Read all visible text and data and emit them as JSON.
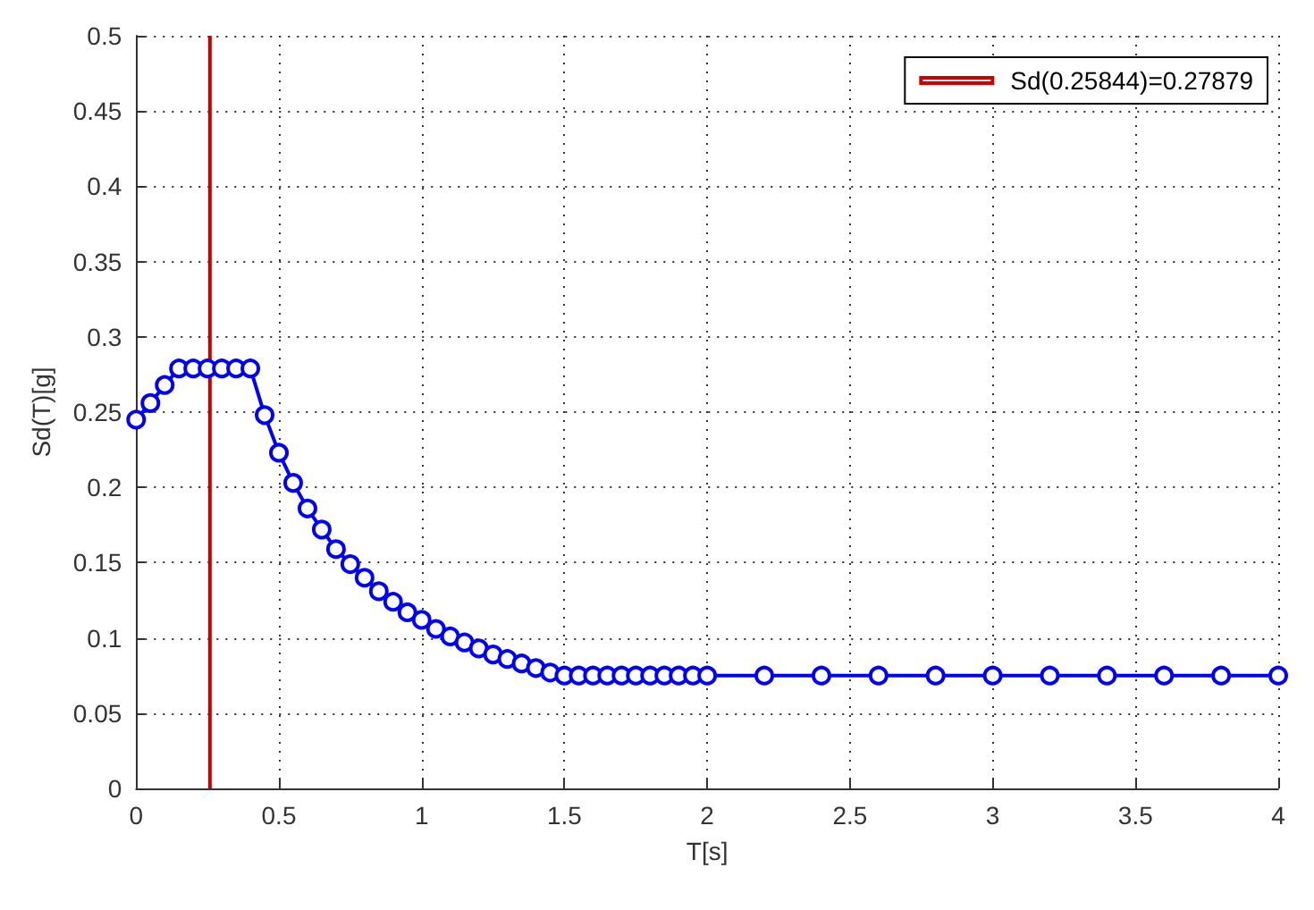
{
  "chart_data": {
    "type": "line",
    "xlabel": "T[s]",
    "ylabel": "Sd(T)[g]",
    "xlim": [
      0,
      4
    ],
    "ylim": [
      0,
      0.5
    ],
    "xticks": [
      0,
      0.5,
      1,
      1.5,
      2,
      2.5,
      3,
      3.5,
      4
    ],
    "yticks": [
      0,
      0.05,
      0.1,
      0.15,
      0.2,
      0.25,
      0.3,
      0.35,
      0.4,
      0.45,
      0.5
    ],
    "grid": true,
    "legend": "top right",
    "marker": "circle",
    "line_style": "solid",
    "series": [
      {
        "color": "#0000ff",
        "x": [
          0,
          0.05,
          0.1,
          0.15,
          0.2,
          0.25,
          0.3,
          0.35,
          0.4,
          0.45,
          0.5,
          0.55,
          0.6,
          0.65,
          0.7,
          0.75,
          0.8,
          0.85,
          0.9,
          0.95,
          1,
          1.05,
          1.1,
          1.15,
          1.2,
          1.25,
          1.3,
          1.35,
          1.4,
          1.45,
          1.5,
          1.55,
          1.6,
          1.65,
          1.7,
          1.75,
          1.8,
          1.85,
          1.9,
          1.95,
          2,
          2.2,
          2.4,
          2.6,
          2.8,
          3,
          3.2,
          3.4,
          3.6,
          3.8,
          4
        ],
        "values": [
          0.245,
          0.256,
          0.268,
          0.279,
          0.279,
          0.279,
          0.279,
          0.279,
          0.279,
          0.248,
          0.223,
          0.203,
          0.186,
          0.172,
          0.159,
          0.149,
          0.14,
          0.131,
          0.124,
          0.117,
          0.112,
          0.106,
          0.101,
          0.097,
          0.093,
          0.089,
          0.086,
          0.083,
          0.08,
          0.077,
          0.075,
          0.075,
          0.075,
          0.075,
          0.075,
          0.075,
          0.075,
          0.075,
          0.075,
          0.075,
          0.075,
          0.075,
          0.075,
          0.075,
          0.075,
          0.075,
          0.075,
          0.075,
          0.075,
          0.075,
          0.075
        ]
      },
      {
        "name": "Sd(0.25844)=0.27879",
        "color": "#cc0000",
        "marker": "none",
        "x": [
          0.25844,
          0.25844
        ],
        "values": [
          0,
          0.5
        ]
      }
    ]
  }
}
